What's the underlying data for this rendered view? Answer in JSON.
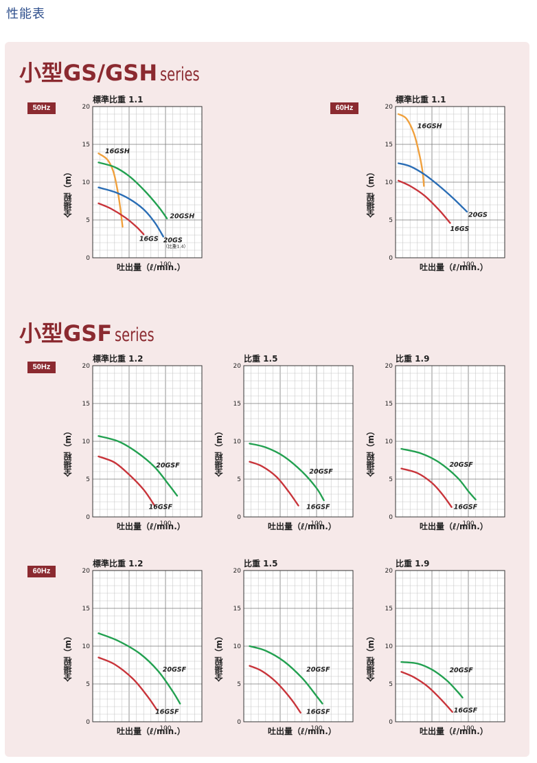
{
  "page_title": "性能表",
  "sections": [
    {
      "title": "小型GS/GSH",
      "suffix": "series"
    },
    {
      "title": "小型GSF",
      "suffix": "series"
    }
  ],
  "colors": {
    "orange": "#f0a03c",
    "green": "#22a050",
    "blue": "#2a6db5",
    "red": "#c8343a",
    "badge": "#8b2a30",
    "title": "#8b2a30",
    "panel": "#f6e9e9"
  },
  "chart_data": [
    {
      "type": "line",
      "hz": "50Hz",
      "title": "標準比重 1.1",
      "xlabel": "吐出量（ℓ/min.）",
      "ylabel": "全揚程（m）",
      "xlim": [
        0,
        150
      ],
      "ylim": [
        0,
        20
      ],
      "xticks": [
        "100"
      ],
      "yticks": [
        "0",
        "5",
        "10",
        "15",
        "20"
      ],
      "grid": true,
      "series": [
        {
          "name": "16GSH",
          "color": "orange",
          "x": [
            8,
            20,
            28,
            34,
            38,
            41
          ],
          "y": [
            13.8,
            13.0,
            11.5,
            9.0,
            6.5,
            4.1
          ],
          "label_x": 17,
          "label_y": 14.1
        },
        {
          "name": "20GSH",
          "color": "green",
          "x": [
            8,
            30,
            50,
            70,
            90,
            102
          ],
          "y": [
            12.6,
            12.0,
            10.8,
            9.0,
            6.8,
            5.2
          ],
          "label_x": 106,
          "label_y": 5.5
        },
        {
          "name": "20GS",
          "color": "blue",
          "x": [
            8,
            30,
            50,
            70,
            85,
            97
          ],
          "y": [
            9.3,
            8.7,
            7.8,
            6.4,
            4.7,
            2.8
          ],
          "label_x": 97,
          "label_y": 2.3
        },
        {
          "name": "16GS",
          "color": "red",
          "x": [
            8,
            25,
            45,
            60,
            70
          ],
          "y": [
            7.2,
            6.5,
            5.3,
            4.1,
            3.1
          ],
          "label_x": 64,
          "label_y": 2.5
        }
      ],
      "annotations": [
        {
          "text": "（比重1.4）",
          "x": 97,
          "y": 1.6
        }
      ]
    },
    {
      "type": "line",
      "hz": "60Hz",
      "title": "標準比重 1.1",
      "xlabel": "吐出量（ℓ/min.）",
      "ylabel": "全揚程（m）",
      "xlim": [
        0,
        150
      ],
      "ylim": [
        0,
        20
      ],
      "xticks": [
        "100"
      ],
      "yticks": [
        "0",
        "5",
        "10",
        "15",
        "20"
      ],
      "grid": true,
      "series": [
        {
          "name": "16GSH",
          "color": "orange",
          "x": [
            4,
            15,
            25,
            32,
            37,
            39
          ],
          "y": [
            19.0,
            18.4,
            16.5,
            14.0,
            11.5,
            9.5
          ],
          "label_x": 30,
          "label_y": 17.4
        },
        {
          "name": "20GS",
          "color": "blue",
          "x": [
            4,
            20,
            40,
            60,
            80,
            98
          ],
          "y": [
            12.5,
            12.1,
            11.0,
            9.5,
            7.8,
            6.1
          ],
          "label_x": 100,
          "label_y": 5.7
        },
        {
          "name": "16GS",
          "color": "red",
          "x": [
            4,
            20,
            40,
            60,
            75
          ],
          "y": [
            10.2,
            9.5,
            8.2,
            6.3,
            4.6
          ],
          "label_x": 75,
          "label_y": 3.8
        }
      ]
    },
    {
      "type": "line",
      "hz": "50Hz",
      "title": "標準比重 1.2",
      "xlabel": "吐出量（ℓ/min.）",
      "ylabel": "全揚程（m）",
      "xlim": [
        0,
        150
      ],
      "ylim": [
        0,
        20
      ],
      "xticks": [
        "100"
      ],
      "yticks": [
        "0",
        "5",
        "10",
        "15",
        "20"
      ],
      "grid": true,
      "series": [
        {
          "name": "20GSF",
          "color": "green",
          "x": [
            8,
            35,
            60,
            85,
            105,
            116
          ],
          "y": [
            10.7,
            10.0,
            8.6,
            6.6,
            4.2,
            2.8
          ],
          "label_x": 87,
          "label_y": 6.8
        },
        {
          "name": "16GSF",
          "color": "red",
          "x": [
            8,
            30,
            50,
            70,
            85
          ],
          "y": [
            8.0,
            7.2,
            5.6,
            3.6,
            1.5
          ],
          "label_x": 77,
          "label_y": 1.3
        }
      ]
    },
    {
      "type": "line",
      "hz": "",
      "title": "比重 1.5",
      "xlabel": "吐出量（ℓ/min.）",
      "ylabel": "全揚程（m）",
      "xlim": [
        0,
        150
      ],
      "ylim": [
        0,
        20
      ],
      "xticks": [
        "100"
      ],
      "yticks": [
        "0",
        "5",
        "10",
        "15",
        "20"
      ],
      "grid": true,
      "series": [
        {
          "name": "20GSF",
          "color": "green",
          "x": [
            8,
            30,
            55,
            80,
            100,
            110
          ],
          "y": [
            9.7,
            9.2,
            8.0,
            6.0,
            3.8,
            2.2
          ],
          "label_x": 90,
          "label_y": 6.0
        },
        {
          "name": "16GSF",
          "color": "red",
          "x": [
            8,
            25,
            45,
            62,
            75
          ],
          "y": [
            7.3,
            6.7,
            5.3,
            3.3,
            1.5
          ],
          "label_x": 86,
          "label_y": 1.3
        }
      ]
    },
    {
      "type": "line",
      "hz": "",
      "title": "比重 1.9",
      "xlabel": "吐出量（ℓ/min.）",
      "ylabel": "全揚程（m）",
      "xlim": [
        0,
        150
      ],
      "ylim": [
        0,
        20
      ],
      "xticks": [
        "100"
      ],
      "yticks": [
        "0",
        "5",
        "10",
        "15",
        "20"
      ],
      "grid": true,
      "series": [
        {
          "name": "20GSF",
          "color": "green",
          "x": [
            8,
            35,
            60,
            85,
            100,
            110
          ],
          "y": [
            9.0,
            8.4,
            7.2,
            5.2,
            3.4,
            2.3
          ],
          "label_x": 74,
          "label_y": 6.9
        },
        {
          "name": "16GSF",
          "color": "red",
          "x": [
            8,
            30,
            50,
            65,
            77
          ],
          "y": [
            6.4,
            5.8,
            4.5,
            2.9,
            1.3
          ],
          "label_x": 80,
          "label_y": 1.3
        }
      ]
    },
    {
      "type": "line",
      "hz": "60Hz",
      "title": "標準比重 1.2",
      "xlabel": "吐出量（ℓ/min.）",
      "ylabel": "全揚程（m）",
      "xlim": [
        0,
        150
      ],
      "ylim": [
        0,
        20
      ],
      "xticks": [
        "100"
      ],
      "yticks": [
        "0",
        "5",
        "10",
        "15",
        "20"
      ],
      "grid": true,
      "series": [
        {
          "name": "20GSF",
          "color": "green",
          "x": [
            8,
            35,
            65,
            90,
            110,
            120
          ],
          "y": [
            11.7,
            10.7,
            9.0,
            6.7,
            4.0,
            2.4
          ],
          "label_x": 96,
          "label_y": 6.9
        },
        {
          "name": "16GSF",
          "color": "red",
          "x": [
            8,
            30,
            55,
            75,
            88
          ],
          "y": [
            8.5,
            7.6,
            5.7,
            3.4,
            1.6
          ],
          "label_x": 86,
          "label_y": 1.3
        }
      ]
    },
    {
      "type": "line",
      "hz": "",
      "title": "比重 1.5",
      "xlabel": "吐出量（ℓ/min.）",
      "ylabel": "全揚程（m）",
      "xlim": [
        0,
        150
      ],
      "ylim": [
        0,
        20
      ],
      "xticks": [
        "100"
      ],
      "yticks": [
        "0",
        "5",
        "10",
        "15",
        "20"
      ],
      "grid": true,
      "series": [
        {
          "name": "20GSF",
          "color": "green",
          "x": [
            8,
            30,
            55,
            80,
            100,
            108
          ],
          "y": [
            10.0,
            9.4,
            8.0,
            5.8,
            3.4,
            2.4
          ],
          "label_x": 86,
          "label_y": 6.9
        },
        {
          "name": "16GSF",
          "color": "red",
          "x": [
            8,
            25,
            45,
            65,
            78
          ],
          "y": [
            7.4,
            6.7,
            5.2,
            3.0,
            1.2
          ],
          "label_x": 86,
          "label_y": 1.3
        }
      ]
    },
    {
      "type": "line",
      "hz": "",
      "title": "比重 1.9",
      "xlabel": "吐出量（ℓ/min.）",
      "ylabel": "全揚程（m）",
      "xlim": [
        0,
        150
      ],
      "ylim": [
        0,
        20
      ],
      "xticks": [
        "100"
      ],
      "yticks": [
        "0",
        "5",
        "10",
        "15",
        "20"
      ],
      "grid": true,
      "series": [
        {
          "name": "20GSF",
          "color": "green",
          "x": [
            8,
            30,
            50,
            70,
            85,
            92
          ],
          "y": [
            7.9,
            7.7,
            6.9,
            5.5,
            4.0,
            3.2
          ],
          "label_x": 74,
          "label_y": 6.8
        },
        {
          "name": "16GSF",
          "color": "red",
          "x": [
            8,
            25,
            45,
            65,
            78
          ],
          "y": [
            6.6,
            5.9,
            4.6,
            2.7,
            1.3
          ],
          "label_x": 80,
          "label_y": 1.5
        }
      ]
    }
  ]
}
